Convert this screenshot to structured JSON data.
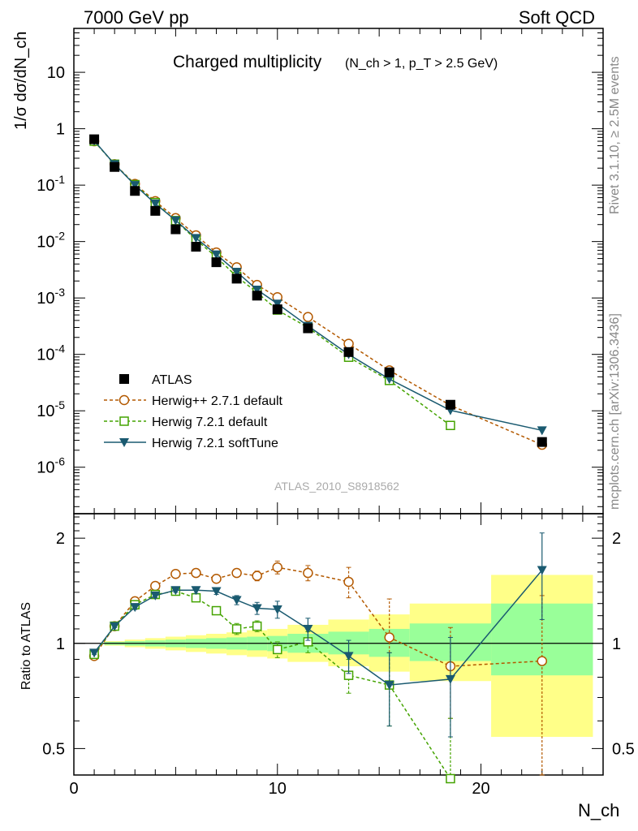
{
  "header": {
    "left": "7000 GeV pp",
    "right": "Soft QCD"
  },
  "side_text": {
    "rivet": "Rivet 3.1.10, ≥ 2.5M events",
    "mcplots": "mcplots.cern.ch [arXiv:1306.3436]"
  },
  "watermark": "ATLAS_2010_S8918562",
  "chart_data": [
    {
      "type": "line",
      "title_main": "Charged multiplicity",
      "title_sub": "(N_ch > 1, p_T > 2.5 GeV)",
      "ylabel": "1/σ dσ/dN_ch",
      "yscale": "log",
      "ylim": [
        1.5e-07,
        60
      ],
      "xlim": [
        0,
        26
      ],
      "y_tick_labels": [
        "10^-6",
        "10^-5",
        "10^-4",
        "10^-3",
        "10^-2",
        "10^-1",
        "1",
        "10"
      ],
      "legend_position": "lower-left",
      "series": [
        {
          "name": "ATLAS",
          "color": "#000000",
          "marker": "filled-square",
          "x": [
            1,
            2,
            3,
            4,
            5,
            6,
            7,
            8,
            9,
            10,
            11.5,
            13.5,
            15.5,
            18.5,
            23
          ],
          "y": [
            0.65,
            0.21,
            0.079,
            0.035,
            0.0165,
            0.0081,
            0.0043,
            0.0022,
            0.0011,
            0.00063,
            0.00029,
            0.00011,
            4.8e-05,
            1.28e-05,
            2.8e-06
          ]
        },
        {
          "name": "Herwig++ 2.7.1 default",
          "color": "#b35900",
          "marker": "open-circle",
          "line": "dashed",
          "x": [
            1,
            2,
            3,
            4,
            5,
            6,
            7,
            8,
            9,
            10,
            11.5,
            13.5,
            15.5,
            18.5,
            23
          ],
          "y": [
            0.6,
            0.235,
            0.105,
            0.052,
            0.026,
            0.0129,
            0.0064,
            0.0035,
            0.0017,
            0.00103,
            0.00046,
            0.000154,
            5.2e-05,
            1.25e-05,
            2.5e-06
          ]
        },
        {
          "name": "Herwig 7.2.1 default",
          "color": "#44a300",
          "marker": "open-square",
          "line": "dashed",
          "x": [
            1,
            2,
            3,
            4,
            5,
            6,
            7,
            8,
            9,
            10,
            11.5,
            13.5,
            15.5,
            18.5
          ],
          "y": [
            0.6,
            0.235,
            0.102,
            0.049,
            0.0235,
            0.0108,
            0.0053,
            0.0024,
            0.00125,
            0.00061,
            0.0003,
            8.9e-05,
            3.45e-05,
            5.5e-06
          ]
        },
        {
          "name": "Herwig 7.2.1 softTune",
          "color": "#1a5a70",
          "marker": "filled-triangle-down",
          "line": "solid",
          "x": [
            1,
            2,
            3,
            4,
            5,
            6,
            7,
            8,
            9,
            10,
            11.5,
            13.5,
            15.5,
            18.5,
            23
          ],
          "y": [
            0.61,
            0.235,
            0.1,
            0.047,
            0.0237,
            0.0115,
            0.0059,
            0.0029,
            0.0014,
            0.00079,
            0.00032,
            0.0001,
            3.65e-05,
            1.02e-05,
            4.5e-06
          ]
        }
      ]
    },
    {
      "type": "line",
      "ylabel": "Ratio to ATLAS",
      "xlabel": "N_ch",
      "yscale": "log",
      "ylim": [
        0.42,
        2.35
      ],
      "xlim": [
        0,
        26
      ],
      "x_ticks": [
        0,
        10,
        20
      ],
      "y_ticks": [
        0.5,
        1,
        2
      ],
      "bands": {
        "edges": [
          1.5,
          2.5,
          3.5,
          4.5,
          5.5,
          6.5,
          7.5,
          8.5,
          9.5,
          10.5,
          12.5,
          14.5,
          16.5,
          20.5,
          25.5
        ],
        "green_lo": [
          0.99,
          0.985,
          0.98,
          0.975,
          0.97,
          0.965,
          0.96,
          0.955,
          0.95,
          0.94,
          0.93,
          0.915,
          0.89,
          0.81
        ],
        "green_hi": [
          1.01,
          1.015,
          1.02,
          1.025,
          1.03,
          1.035,
          1.04,
          1.045,
          1.05,
          1.065,
          1.08,
          1.1,
          1.14,
          1.3
        ],
        "yellow_lo": [
          0.985,
          0.975,
          0.965,
          0.955,
          0.945,
          0.935,
          0.925,
          0.915,
          0.905,
          0.885,
          0.86,
          0.83,
          0.78,
          0.54
        ],
        "yellow_hi": [
          1.015,
          1.025,
          1.035,
          1.045,
          1.055,
          1.065,
          1.075,
          1.09,
          1.1,
          1.13,
          1.17,
          1.21,
          1.3,
          1.57
        ],
        "green_color": "#99ff99",
        "yellow_color": "#ffff88"
      },
      "series": [
        {
          "name": "Herwig++ 2.7.1 default",
          "color": "#b35900",
          "marker": "open-circle",
          "line": "dashed",
          "x": [
            1,
            2,
            3,
            4,
            5,
            6,
            7,
            8,
            9,
            10,
            11.5,
            13.5,
            15.5,
            18.5,
            23
          ],
          "y": [
            0.92,
            1.12,
            1.32,
            1.46,
            1.58,
            1.59,
            1.53,
            1.59,
            1.56,
            1.65,
            1.59,
            1.5,
            1.04,
            0.86,
            0.89
          ],
          "err": [
            0.01,
            0.01,
            0.02,
            0.02,
            0.03,
            0.03,
            0.04,
            0.04,
            0.05,
            0.07,
            0.08,
            0.15,
            0.3,
            0.25,
            0.48
          ]
        },
        {
          "name": "Herwig 7.2.1 default",
          "color": "#44a300",
          "marker": "open-square",
          "line": "dashed",
          "x": [
            1,
            2,
            3,
            4,
            5,
            6,
            7,
            8,
            9,
            10,
            11.5,
            13.5,
            15.5,
            18.5
          ],
          "y": [
            0.93,
            1.12,
            1.29,
            1.38,
            1.41,
            1.35,
            1.24,
            1.1,
            1.12,
            0.96,
            1.01,
            0.81,
            0.76,
            0.41
          ],
          "err": [
            0.01,
            0.01,
            0.02,
            0.02,
            0.02,
            0.03,
            0.03,
            0.04,
            0.04,
            0.05,
            0.07,
            0.09,
            0.18,
            0.2
          ]
        },
        {
          "name": "Herwig 7.2.1 softTune",
          "color": "#1a5a70",
          "marker": "filled-triangle-down",
          "line": "solid",
          "x": [
            1,
            2,
            3,
            4,
            5,
            6,
            7,
            8,
            9,
            10,
            11.5,
            13.5,
            15.5,
            18.5,
            23
          ],
          "y": [
            0.94,
            1.12,
            1.27,
            1.37,
            1.42,
            1.42,
            1.41,
            1.33,
            1.26,
            1.25,
            1.1,
            0.92,
            0.76,
            0.79,
            1.62
          ],
          "err": [
            0.01,
            0.01,
            0.02,
            0.02,
            0.02,
            0.03,
            0.03,
            0.04,
            0.05,
            0.07,
            0.08,
            0.1,
            0.18,
            0.25,
            0.45
          ]
        }
      ]
    }
  ]
}
